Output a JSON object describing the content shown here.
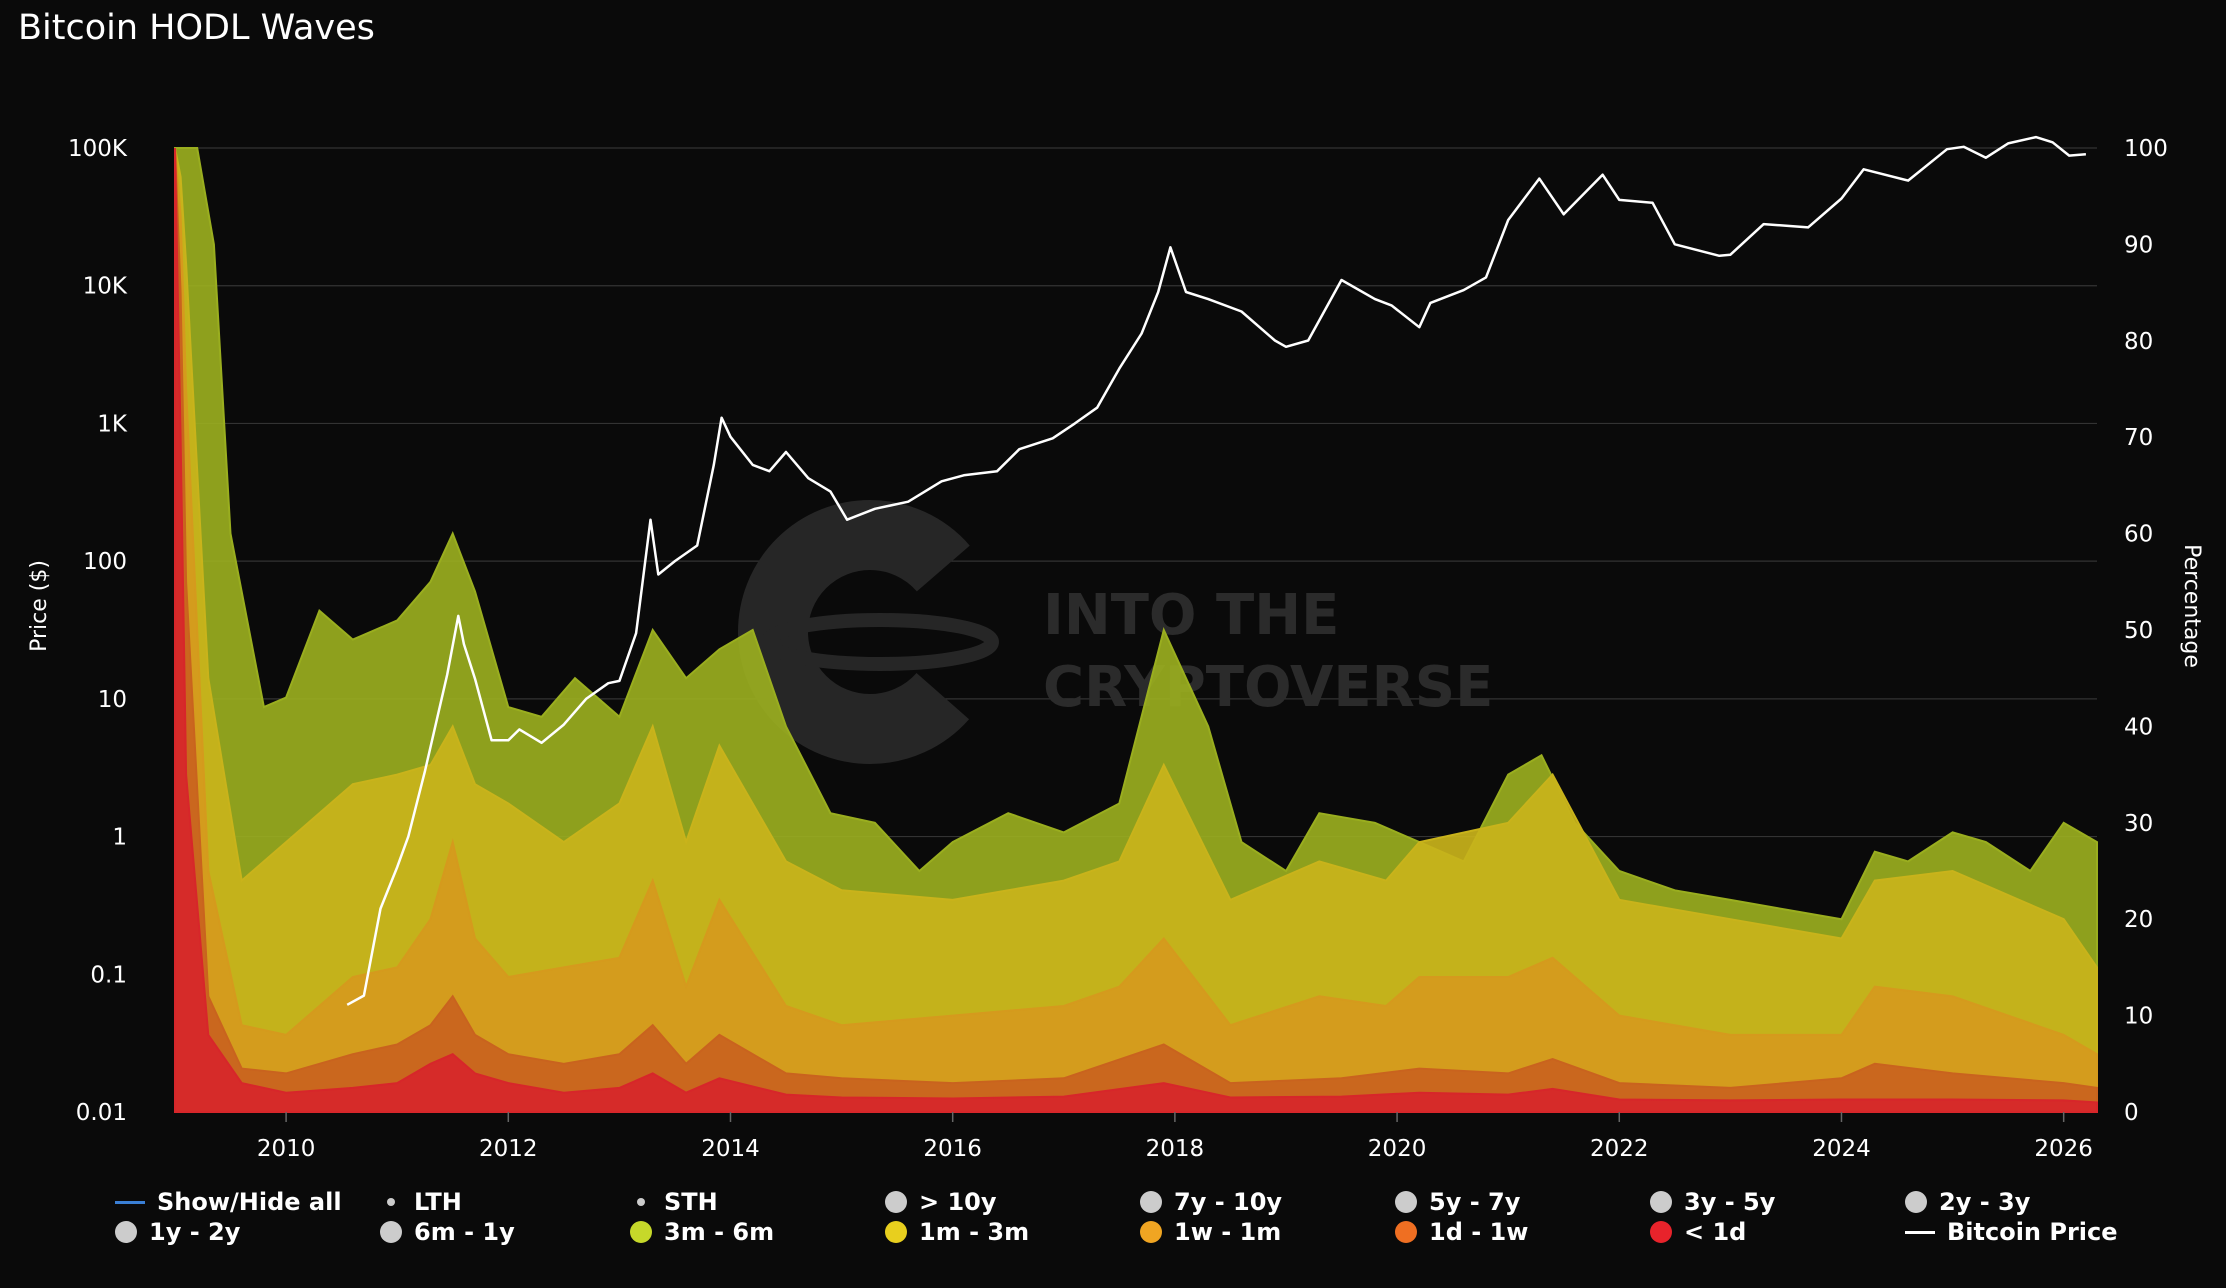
{
  "chart_data": {
    "type": "area",
    "title": "Bitcoin HODL Waves",
    "y_left": {
      "label": "Price ($)",
      "scale": "log",
      "range": [
        0.01,
        100000
      ],
      "ticks": [
        "0.01",
        "0.1",
        "1",
        "10",
        "100",
        "1K",
        "10K",
        "100K"
      ]
    },
    "y_right": {
      "label": "Percentage",
      "range": [
        0,
        100
      ],
      "ticks": [
        "0",
        "10",
        "20",
        "30",
        "40",
        "50",
        "60",
        "70",
        "80",
        "90",
        "100"
      ]
    },
    "x": {
      "range": [
        2009.0,
        2026.3
      ],
      "ticks": [
        "2010",
        "2012",
        "2014",
        "2016",
        "2018",
        "2020",
        "2022",
        "2024",
        "2026"
      ]
    },
    "watermark": [
      "INTO THE",
      "CRYPTOVERSE"
    ],
    "colors": {
      "3m - 6m": "#9aae1f",
      "1m - 3m": "#c9b31b",
      "1w - 1m": "#d59a1d",
      "1d - 1w": "#c9631e",
      "< 1d": "#d7262a",
      "Bitcoin Price": "#ffffff"
    },
    "stacked_percent_series": [
      {
        "name": "< 1d",
        "color": "#d7262a",
        "points": [
          [
            2009.0,
            100
          ],
          [
            2009.05,
            70
          ],
          [
            2009.1,
            35
          ],
          [
            2009.3,
            8
          ],
          [
            2009.6,
            3
          ],
          [
            2010.0,
            2
          ],
          [
            2010.6,
            2.5
          ],
          [
            2011.0,
            3
          ],
          [
            2011.3,
            5
          ],
          [
            2011.5,
            6
          ],
          [
            2011.7,
            4
          ],
          [
            2012.0,
            3
          ],
          [
            2012.5,
            2
          ],
          [
            2013.0,
            2.5
          ],
          [
            2013.3,
            4
          ],
          [
            2013.6,
            2
          ],
          [
            2013.9,
            3.5
          ],
          [
            2014.5,
            1.8
          ],
          [
            2015.0,
            1.5
          ],
          [
            2016.0,
            1.4
          ],
          [
            2017.0,
            1.6
          ],
          [
            2017.9,
            3
          ],
          [
            2018.5,
            1.5
          ],
          [
            2019.5,
            1.6
          ],
          [
            2020.2,
            2
          ],
          [
            2021.0,
            1.8
          ],
          [
            2021.4,
            2.4
          ],
          [
            2022.0,
            1.3
          ],
          [
            2023.0,
            1.2
          ],
          [
            2024.0,
            1.3
          ],
          [
            2025.0,
            1.3
          ],
          [
            2026.0,
            1.2
          ],
          [
            2026.3,
            1
          ]
        ]
      },
      {
        "name": "1d - 1w",
        "color": "#c9631e",
        "points": [
          [
            2009.0,
            100
          ],
          [
            2009.05,
            85
          ],
          [
            2009.1,
            55
          ],
          [
            2009.3,
            12
          ],
          [
            2009.6,
            4.5
          ],
          [
            2010.0,
            4
          ],
          [
            2010.6,
            6
          ],
          [
            2011.0,
            7
          ],
          [
            2011.3,
            9
          ],
          [
            2011.5,
            12
          ],
          [
            2011.7,
            8
          ],
          [
            2012.0,
            6
          ],
          [
            2012.5,
            5
          ],
          [
            2013.0,
            6
          ],
          [
            2013.3,
            9
          ],
          [
            2013.6,
            5
          ],
          [
            2013.9,
            8
          ],
          [
            2014.5,
            4
          ],
          [
            2015.0,
            3.5
          ],
          [
            2016.0,
            3
          ],
          [
            2017.0,
            3.5
          ],
          [
            2017.9,
            7
          ],
          [
            2018.5,
            3
          ],
          [
            2019.5,
            3.5
          ],
          [
            2020.2,
            4.5
          ],
          [
            2021.0,
            4
          ],
          [
            2021.4,
            5.5
          ],
          [
            2022.0,
            3
          ],
          [
            2023.0,
            2.5
          ],
          [
            2024.0,
            3.5
          ],
          [
            2024.3,
            5
          ],
          [
            2025.0,
            4
          ],
          [
            2026.0,
            3
          ],
          [
            2026.3,
            2.5
          ]
        ]
      },
      {
        "name": "1w - 1m",
        "color": "#d59a1d",
        "points": [
          [
            2009.0,
            100
          ],
          [
            2009.05,
            93
          ],
          [
            2009.1,
            75
          ],
          [
            2009.3,
            25
          ],
          [
            2009.6,
            9
          ],
          [
            2010.0,
            8
          ],
          [
            2010.6,
            14
          ],
          [
            2011.0,
            15
          ],
          [
            2011.3,
            20
          ],
          [
            2011.5,
            28
          ],
          [
            2011.7,
            18
          ],
          [
            2012.0,
            14
          ],
          [
            2012.5,
            15
          ],
          [
            2013.0,
            16
          ],
          [
            2013.3,
            24
          ],
          [
            2013.6,
            13
          ],
          [
            2013.9,
            22
          ],
          [
            2014.5,
            11
          ],
          [
            2015.0,
            9
          ],
          [
            2016.0,
            10
          ],
          [
            2017.0,
            11
          ],
          [
            2017.5,
            13
          ],
          [
            2017.9,
            18
          ],
          [
            2018.5,
            9
          ],
          [
            2019.3,
            12
          ],
          [
            2019.9,
            11
          ],
          [
            2020.2,
            14
          ],
          [
            2021.0,
            14
          ],
          [
            2021.4,
            16
          ],
          [
            2022.0,
            10
          ],
          [
            2023.0,
            8
          ],
          [
            2024.0,
            8
          ],
          [
            2024.3,
            13
          ],
          [
            2025.0,
            12
          ],
          [
            2026.0,
            8
          ],
          [
            2026.3,
            6
          ]
        ]
      },
      {
        "name": "1m - 3m",
        "color": "#c9b31b",
        "points": [
          [
            2009.0,
            100
          ],
          [
            2009.05,
            97
          ],
          [
            2009.1,
            88
          ],
          [
            2009.3,
            45
          ],
          [
            2009.6,
            24
          ],
          [
            2010.0,
            28
          ],
          [
            2010.6,
            34
          ],
          [
            2011.0,
            35
          ],
          [
            2011.3,
            36
          ],
          [
            2011.5,
            40
          ],
          [
            2011.7,
            34
          ],
          [
            2012.0,
            32
          ],
          [
            2012.5,
            28
          ],
          [
            2013.0,
            32
          ],
          [
            2013.3,
            40
          ],
          [
            2013.6,
            28
          ],
          [
            2013.9,
            38
          ],
          [
            2014.5,
            26
          ],
          [
            2015.0,
            23
          ],
          [
            2016.0,
            22
          ],
          [
            2017.0,
            24
          ],
          [
            2017.5,
            26
          ],
          [
            2017.9,
            36
          ],
          [
            2018.5,
            22
          ],
          [
            2019.3,
            26
          ],
          [
            2019.9,
            24
          ],
          [
            2020.2,
            28
          ],
          [
            2021.0,
            30
          ],
          [
            2021.4,
            35
          ],
          [
            2022.0,
            22
          ],
          [
            2023.0,
            20
          ],
          [
            2024.0,
            18
          ],
          [
            2024.3,
            24
          ],
          [
            2025.0,
            25
          ],
          [
            2025.6,
            22
          ],
          [
            2026.0,
            20
          ],
          [
            2026.3,
            15
          ]
        ]
      },
      {
        "name": "3m - 6m",
        "color": "#9aae1f",
        "points": [
          [
            2009.0,
            100
          ],
          [
            2009.05,
            100
          ],
          [
            2009.2,
            100
          ],
          [
            2009.35,
            90
          ],
          [
            2009.5,
            60
          ],
          [
            2009.8,
            42
          ],
          [
            2010.0,
            43
          ],
          [
            2010.3,
            52
          ],
          [
            2010.6,
            49
          ],
          [
            2011.0,
            51
          ],
          [
            2011.3,
            55
          ],
          [
            2011.5,
            60
          ],
          [
            2011.7,
            54
          ],
          [
            2012.0,
            42
          ],
          [
            2012.3,
            41
          ],
          [
            2012.6,
            45
          ],
          [
            2013.0,
            41
          ],
          [
            2013.3,
            50
          ],
          [
            2013.6,
            45
          ],
          [
            2013.9,
            48
          ],
          [
            2014.2,
            50
          ],
          [
            2014.5,
            40
          ],
          [
            2014.9,
            31
          ],
          [
            2015.3,
            30
          ],
          [
            2015.7,
            25
          ],
          [
            2016.0,
            28
          ],
          [
            2016.5,
            31
          ],
          [
            2017.0,
            29
          ],
          [
            2017.5,
            32
          ],
          [
            2017.9,
            50
          ],
          [
            2018.3,
            40
          ],
          [
            2018.6,
            28
          ],
          [
            2019.0,
            25
          ],
          [
            2019.3,
            31
          ],
          [
            2019.8,
            30
          ],
          [
            2020.2,
            28
          ],
          [
            2020.6,
            26
          ],
          [
            2021.0,
            35
          ],
          [
            2021.3,
            37
          ],
          [
            2021.6,
            30
          ],
          [
            2022.0,
            25
          ],
          [
            2022.5,
            23
          ],
          [
            2023.0,
            22
          ],
          [
            2023.5,
            21
          ],
          [
            2024.0,
            20
          ],
          [
            2024.3,
            27
          ],
          [
            2024.6,
            26
          ],
          [
            2025.0,
            29
          ],
          [
            2025.3,
            28
          ],
          [
            2025.7,
            25
          ],
          [
            2026.0,
            30
          ],
          [
            2026.3,
            28
          ]
        ]
      }
    ],
    "price_series": {
      "name": "Bitcoin Price",
      "color": "#ffffff",
      "points": [
        [
          2010.55,
          0.06
        ],
        [
          2010.7,
          0.07
        ],
        [
          2010.85,
          0.3
        ],
        [
          2011.0,
          0.6
        ],
        [
          2011.1,
          1
        ],
        [
          2011.25,
          3
        ],
        [
          2011.45,
          15
        ],
        [
          2011.55,
          40
        ],
        [
          2011.6,
          25
        ],
        [
          2011.7,
          14
        ],
        [
          2011.85,
          5
        ],
        [
          2012.0,
          5
        ],
        [
          2012.1,
          6
        ],
        [
          2012.3,
          4.8
        ],
        [
          2012.5,
          6.5
        ],
        [
          2012.7,
          10
        ],
        [
          2012.9,
          13
        ],
        [
          2013.0,
          13.5
        ],
        [
          2013.15,
          30
        ],
        [
          2013.28,
          200
        ],
        [
          2013.35,
          80
        ],
        [
          2013.5,
          100
        ],
        [
          2013.7,
          130
        ],
        [
          2013.85,
          500
        ],
        [
          2013.92,
          1100
        ],
        [
          2014.0,
          800
        ],
        [
          2014.2,
          500
        ],
        [
          2014.35,
          450
        ],
        [
          2014.5,
          620
        ],
        [
          2014.7,
          400
        ],
        [
          2014.9,
          320
        ],
        [
          2015.05,
          200
        ],
        [
          2015.3,
          240
        ],
        [
          2015.6,
          270
        ],
        [
          2015.9,
          380
        ],
        [
          2016.1,
          420
        ],
        [
          2016.4,
          450
        ],
        [
          2016.6,
          650
        ],
        [
          2016.9,
          780
        ],
        [
          2017.1,
          1000
        ],
        [
          2017.3,
          1300
        ],
        [
          2017.5,
          2500
        ],
        [
          2017.7,
          4500
        ],
        [
          2017.85,
          9000
        ],
        [
          2017.96,
          19000
        ],
        [
          2018.1,
          9000
        ],
        [
          2018.3,
          8000
        ],
        [
          2018.6,
          6500
        ],
        [
          2018.9,
          4000
        ],
        [
          2019.0,
          3600
        ],
        [
          2019.2,
          4000
        ],
        [
          2019.5,
          11000
        ],
        [
          2019.8,
          8000
        ],
        [
          2019.95,
          7200
        ],
        [
          2020.2,
          5000
        ],
        [
          2020.3,
          7500
        ],
        [
          2020.6,
          9300
        ],
        [
          2020.8,
          11500
        ],
        [
          2021.0,
          30000
        ],
        [
          2021.28,
          60000
        ],
        [
          2021.5,
          33000
        ],
        [
          2021.85,
          64000
        ],
        [
          2022.0,
          42000
        ],
        [
          2022.3,
          40000
        ],
        [
          2022.5,
          20000
        ],
        [
          2022.9,
          16500
        ],
        [
          2023.0,
          16800
        ],
        [
          2023.3,
          28000
        ],
        [
          2023.7,
          26500
        ],
        [
          2024.0,
          43000
        ],
        [
          2024.2,
          70000
        ],
        [
          2024.6,
          58000
        ],
        [
          2024.95,
          98000
        ],
        [
          2025.1,
          102000
        ],
        [
          2025.3,
          85000
        ],
        [
          2025.5,
          108000
        ],
        [
          2025.75,
          120000
        ],
        [
          2025.9,
          110000
        ],
        [
          2026.05,
          88000
        ],
        [
          2026.2,
          90000
        ]
      ]
    }
  },
  "legend": {
    "row1": [
      {
        "name": "Show/Hide all",
        "symbol": "line",
        "color": "#3a7fd5"
      },
      {
        "name": "LTH",
        "symbol": "dot",
        "color": "#cccccc"
      },
      {
        "name": "STH",
        "symbol": "dot",
        "color": "#cccccc"
      },
      {
        "name": "> 10y",
        "symbol": "circle",
        "color": "#cccccc"
      },
      {
        "name": "7y - 10y",
        "symbol": "circle",
        "color": "#cccccc"
      },
      {
        "name": "5y - 7y",
        "symbol": "circle",
        "color": "#cccccc"
      },
      {
        "name": "3y - 5y",
        "symbol": "circle",
        "color": "#cccccc"
      },
      {
        "name": "2y - 3y",
        "symbol": "circle",
        "color": "#cccccc"
      }
    ],
    "row2": [
      {
        "name": "1y - 2y",
        "symbol": "circle",
        "color": "#cccccc"
      },
      {
        "name": "6m - 1y",
        "symbol": "circle",
        "color": "#cccccc"
      },
      {
        "name": "3m - 6m",
        "symbol": "circle",
        "color": "#c6d82a"
      },
      {
        "name": "1m - 3m",
        "symbol": "circle",
        "color": "#e8cf1e"
      },
      {
        "name": "1w - 1m",
        "symbol": "circle",
        "color": "#f0a522"
      },
      {
        "name": "1d - 1w",
        "symbol": "circle",
        "color": "#ef6f22"
      },
      {
        "name": "< 1d",
        "symbol": "circle",
        "color": "#e8232b"
      },
      {
        "name": "Bitcoin Price",
        "symbol": "line",
        "color": "#ffffff"
      }
    ]
  }
}
